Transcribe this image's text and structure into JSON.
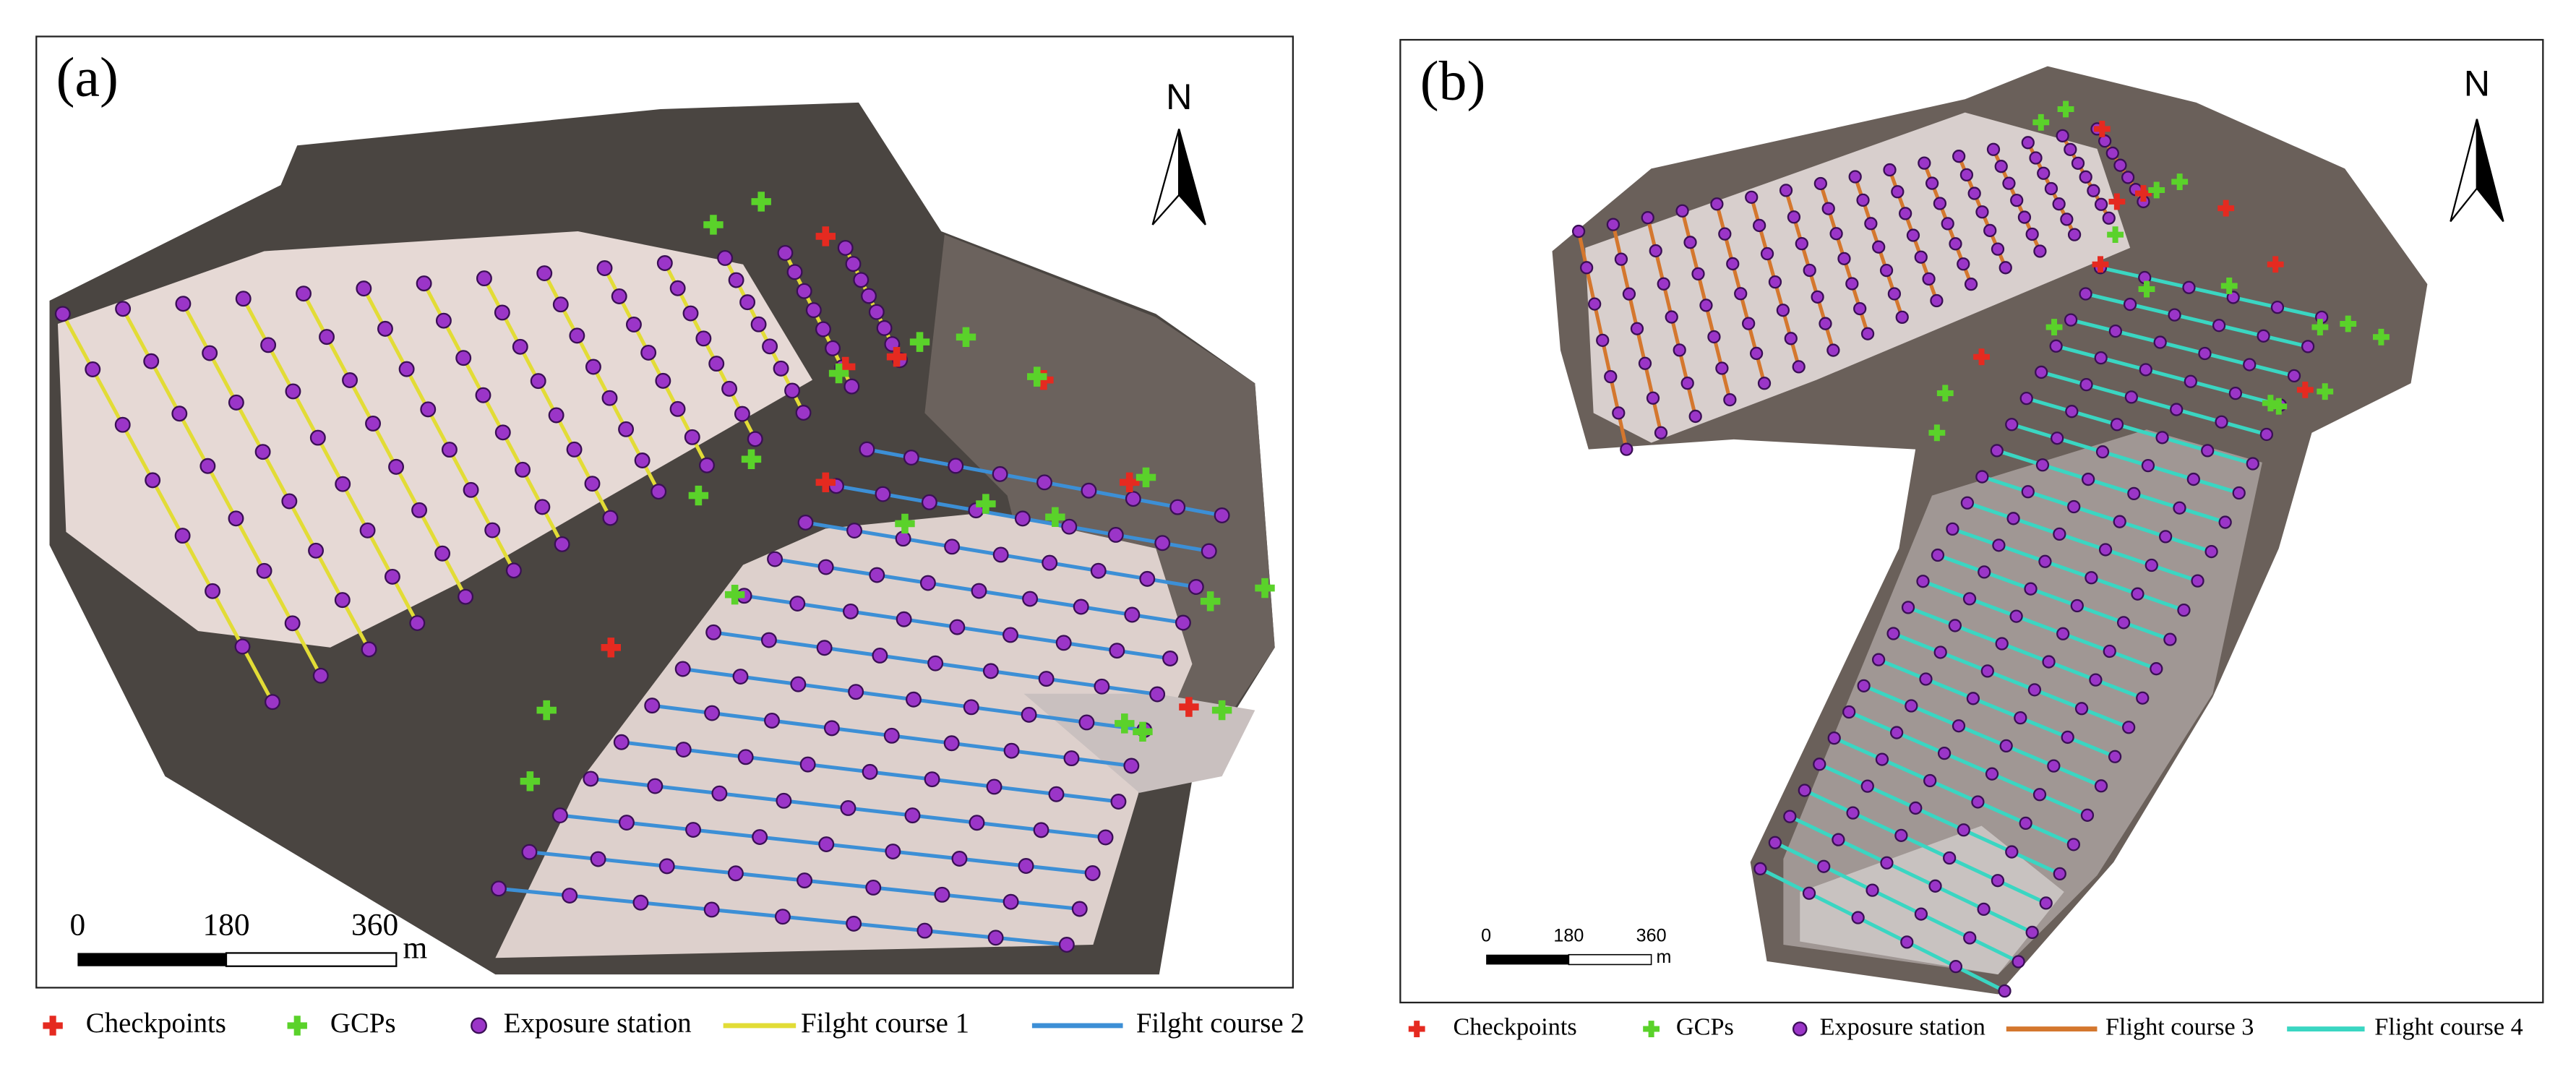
{
  "panels": [
    {
      "label": "(a)",
      "north": "N",
      "scale_bar": {
        "ticks": [
          0,
          180,
          360
        ],
        "unit": "m"
      },
      "legend": [
        "Checkpoints",
        "GCPs",
        "Exposure station",
        "Filght course 1",
        "Filght course 2"
      ]
    },
    {
      "label": "(b)",
      "north": "N",
      "scale_bar": {
        "ticks": [
          0,
          180,
          360
        ],
        "unit": "m"
      },
      "legend": [
        "Checkpoints",
        "GCPs",
        "Exposure station",
        "Flight course 3",
        "Flight course 4"
      ]
    }
  ]
}
